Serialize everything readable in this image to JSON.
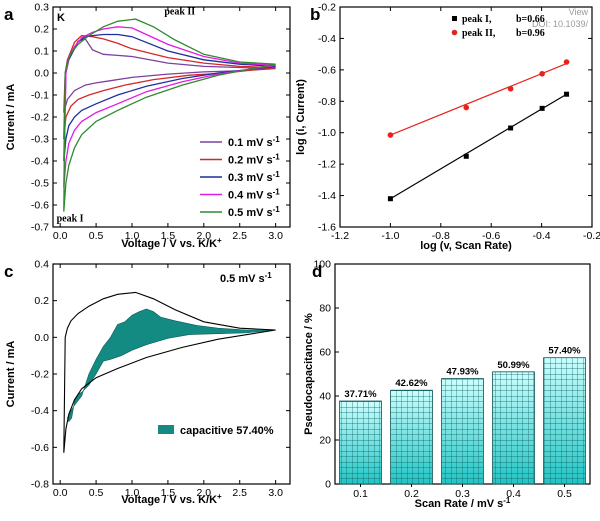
{
  "chart_data": [
    {
      "id": "a",
      "panel_label": "a",
      "type": "line",
      "title": "",
      "corner_text": "K",
      "xlabel": "Voltage / V vs. K/K",
      "xlabel_sup": "+",
      "ylabel": "Current / mA",
      "xlim": [
        -0.1,
        3.2
      ],
      "ylim": [
        -0.7,
        0.3
      ],
      "xticks": [
        0.0,
        0.5,
        1.0,
        1.5,
        2.0,
        2.5,
        3.0
      ],
      "xtick_labels": [
        "0.0",
        "0.5",
        "1.0",
        "1.5",
        "2.0",
        "2.5",
        "3.0"
      ],
      "yticks": [
        -0.7,
        -0.6,
        -0.5,
        -0.4,
        -0.3,
        -0.2,
        -0.1,
        0.0,
        0.1,
        0.2,
        0.3
      ],
      "ytick_labels": [
        "-0.7",
        "-0.6",
        "-0.5",
        "-0.4",
        "-0.3",
        "-0.2",
        "-0.1",
        "0.0",
        "0.1",
        "0.2",
        "0.3"
      ],
      "annotations": [
        {
          "text": "peak II",
          "x": 1.45,
          "y": 0.265
        },
        {
          "text": "peak I",
          "x": -0.05,
          "y": -0.675
        }
      ],
      "legend_position": "bottom-right",
      "series": [
        {
          "name": "0.1 mV s",
          "name_sup": "-1",
          "color": "#7f3f9f",
          "x": [
            0.05,
            0.1,
            0.2,
            0.35,
            0.5,
            0.7,
            1.0,
            1.5,
            2.0,
            2.5,
            3.0,
            2.5,
            2.0,
            1.5,
            1.0,
            0.8,
            0.6,
            0.45,
            0.35,
            0.25,
            0.2,
            0.15,
            0.1,
            0.07,
            0.05
          ],
          "y": [
            -0.18,
            -0.12,
            -0.08,
            -0.055,
            -0.045,
            -0.035,
            -0.02,
            -0.005,
            0.005,
            0.01,
            0.02,
            0.025,
            0.03,
            0.045,
            0.075,
            0.08,
            0.085,
            0.105,
            0.155,
            0.145,
            0.11,
            0.08,
            0.05,
            0.0,
            -0.18
          ]
        },
        {
          "name": "0.2 mV s",
          "name_sup": "-1",
          "color": "#d62728",
          "x": [
            0.05,
            0.08,
            0.15,
            0.25,
            0.4,
            0.6,
            0.9,
            1.3,
            1.8,
            2.3,
            3.0,
            2.5,
            2.0,
            1.5,
            1.0,
            0.8,
            0.6,
            0.45,
            0.3,
            0.2,
            0.15,
            0.1,
            0.07,
            0.05
          ],
          "y": [
            -0.3,
            -0.2,
            -0.15,
            -0.12,
            -0.1,
            -0.08,
            -0.055,
            -0.03,
            -0.01,
            0.0,
            0.025,
            0.03,
            0.045,
            0.07,
            0.11,
            0.135,
            0.155,
            0.165,
            0.17,
            0.14,
            0.1,
            0.06,
            0.0,
            -0.3
          ]
        },
        {
          "name": "0.3 mV s",
          "name_sup": "-1",
          "color": "#1f2fa0",
          "x": [
            0.05,
            0.08,
            0.12,
            0.2,
            0.3,
            0.5,
            0.8,
            1.2,
            1.7,
            2.2,
            3.0,
            2.5,
            2.0,
            1.5,
            1.0,
            0.8,
            0.6,
            0.45,
            0.35,
            0.25,
            0.18,
            0.12,
            0.08,
            0.05
          ],
          "y": [
            -0.4,
            -0.3,
            -0.24,
            -0.2,
            -0.17,
            -0.14,
            -0.1,
            -0.06,
            -0.025,
            0.0,
            0.03,
            0.04,
            0.06,
            0.1,
            0.165,
            0.175,
            0.175,
            0.17,
            0.165,
            0.14,
            0.1,
            0.06,
            0.0,
            -0.4
          ]
        },
        {
          "name": "0.4 mV s",
          "name_sup": "-1",
          "color": "#e21be2",
          "x": [
            0.05,
            0.08,
            0.12,
            0.2,
            0.3,
            0.5,
            0.8,
            1.2,
            1.7,
            2.2,
            3.0,
            2.5,
            2.0,
            1.5,
            1.2,
            1.0,
            0.8,
            0.6,
            0.45,
            0.3,
            0.2,
            0.12,
            0.08,
            0.05
          ],
          "y": [
            -0.52,
            -0.4,
            -0.32,
            -0.26,
            -0.22,
            -0.18,
            -0.14,
            -0.085,
            -0.04,
            -0.005,
            0.035,
            0.045,
            0.075,
            0.13,
            0.175,
            0.205,
            0.21,
            0.2,
            0.185,
            0.16,
            0.12,
            0.07,
            0.0,
            -0.52
          ]
        },
        {
          "name": "0.5 mV s",
          "name_sup": "-1",
          "color": "#2e8b2e",
          "x": [
            0.05,
            0.08,
            0.12,
            0.2,
            0.3,
            0.5,
            0.8,
            1.2,
            1.7,
            2.2,
            3.0,
            2.5,
            2.0,
            1.6,
            1.3,
            1.05,
            0.8,
            0.6,
            0.4,
            0.25,
            0.15,
            0.1,
            0.07,
            0.05
          ],
          "y": [
            -0.63,
            -0.5,
            -0.42,
            -0.34,
            -0.28,
            -0.22,
            -0.17,
            -0.11,
            -0.055,
            -0.01,
            0.04,
            0.05,
            0.085,
            0.15,
            0.21,
            0.245,
            0.235,
            0.21,
            0.17,
            0.13,
            0.09,
            0.05,
            0.0,
            -0.63
          ]
        }
      ]
    },
    {
      "id": "b",
      "panel_label": "b",
      "type": "scatter",
      "title": "",
      "xlabel": "log (v, Scan Rate)",
      "ylabel": "log (i, Current)",
      "xlim": [
        -1.2,
        -0.2
      ],
      "ylim": [
        -1.6,
        -0.2
      ],
      "xticks": [
        -1.2,
        -1.0,
        -0.8,
        -0.6,
        -0.4,
        -0.2
      ],
      "xtick_labels": [
        "-1.2",
        "-1.0",
        "-0.8",
        "-0.6",
        "-0.4",
        "-0.2"
      ],
      "yticks": [
        -1.6,
        -1.4,
        -1.2,
        -1.0,
        -0.8,
        -0.6,
        -0.4,
        -0.2
      ],
      "ytick_labels": [
        "-1.6",
        "-1.4",
        "-1.2",
        "-1.0",
        "-0.8",
        "-0.6",
        "-0.4",
        "-0.2"
      ],
      "legend_position": "top-right",
      "faint_text": [
        "DOI: 10.1039/",
        "View"
      ],
      "series": [
        {
          "name": "peak I,",
          "slope_label": "b=0.66",
          "color": "#000000",
          "marker": "square",
          "x": [
            -1.0,
            -0.699,
            -0.523,
            -0.398,
            -0.301
          ],
          "y": [
            -1.42,
            -1.15,
            -0.97,
            -0.845,
            -0.755
          ],
          "fit": [
            [
              -1.0,
              -1.42
            ],
            [
              -0.301,
              -0.755
            ]
          ]
        },
        {
          "name": "peak II,",
          "slope_label": "b=0.96",
          "color": "#e8221a",
          "marker": "circle",
          "x": [
            -1.0,
            -0.699,
            -0.523,
            -0.398,
            -0.301
          ],
          "y": [
            -1.015,
            -0.84,
            -0.72,
            -0.625,
            -0.55
          ],
          "fit": [
            [
              -1.0,
              -1.015
            ],
            [
              -0.301,
              -0.56
            ]
          ]
        }
      ]
    },
    {
      "id": "c",
      "panel_label": "c",
      "type": "area",
      "title": "",
      "corner_text": "0.5 mV s",
      "corner_text_sup": "-1",
      "xlabel": "Voltage / V vs. K/K",
      "xlabel_sup": "+",
      "ylabel": "Current / mA",
      "xlim": [
        -0.1,
        3.2
      ],
      "ylim": [
        -0.8,
        0.4
      ],
      "xticks": [
        0.0,
        0.5,
        1.0,
        1.5,
        2.0,
        2.5,
        3.0
      ],
      "xtick_labels": [
        "0.0",
        "0.5",
        "1.0",
        "1.5",
        "2.0",
        "2.5",
        "3.0"
      ],
      "yticks": [
        -0.8,
        -0.6,
        -0.4,
        -0.2,
        0.0,
        0.2,
        0.4
      ],
      "ytick_labels": [
        "-0.8",
        "-0.6",
        "-0.4",
        "-0.2",
        "0.0",
        "0.2",
        "0.4"
      ],
      "legend_position": "bottom-right",
      "legend_label": "capacitive 57.40%",
      "fill_color": "#138a82",
      "total_curve": {
        "x": [
          0.05,
          0.08,
          0.12,
          0.2,
          0.3,
          0.5,
          0.8,
          1.2,
          1.7,
          2.2,
          3.0,
          2.5,
          2.0,
          1.6,
          1.3,
          1.05,
          0.8,
          0.6,
          0.4,
          0.25,
          0.15,
          0.1,
          0.07,
          0.05
        ],
        "y": [
          -0.63,
          -0.5,
          -0.42,
          -0.34,
          -0.28,
          -0.22,
          -0.17,
          -0.11,
          -0.055,
          -0.01,
          0.04,
          0.05,
          0.085,
          0.15,
          0.21,
          0.245,
          0.235,
          0.21,
          0.17,
          0.13,
          0.09,
          0.05,
          0.0,
          -0.63
        ]
      },
      "capacitive_region": {
        "x": [
          0.1,
          0.12,
          0.16,
          0.2,
          0.25,
          0.3,
          0.4,
          0.5,
          0.6,
          0.7,
          0.85,
          1.0,
          1.2,
          1.5,
          1.8,
          2.2,
          2.6,
          3.0,
          2.6,
          2.2,
          1.9,
          1.6,
          1.4,
          1.3,
          1.2,
          1.1,
          1.0,
          0.9,
          0.8,
          0.7,
          0.6,
          0.5,
          0.4,
          0.3,
          0.2,
          0.15,
          0.1
        ],
        "y": [
          -0.44,
          -0.46,
          -0.44,
          -0.35,
          -0.31,
          -0.3,
          -0.26,
          -0.2,
          -0.13,
          -0.12,
          -0.1,
          -0.07,
          -0.04,
          -0.005,
          0.015,
          0.02,
          0.025,
          0.04,
          0.04,
          0.05,
          0.065,
          0.09,
          0.11,
          0.14,
          0.155,
          0.14,
          0.12,
          0.085,
          0.07,
          0.0,
          -0.05,
          -0.12,
          -0.2,
          -0.32,
          -0.37,
          -0.4,
          -0.44
        ]
      }
    },
    {
      "id": "d",
      "panel_label": "d",
      "type": "bar",
      "title": "",
      "xlabel": "Scan Rate / mV s",
      "xlabel_sup": "-1",
      "ylabel": "Pseudocapacitance / %",
      "categories": [
        "0.1",
        "0.2",
        "0.3",
        "0.4",
        "0.5"
      ],
      "values": [
        37.71,
        42.62,
        47.93,
        50.99,
        57.4
      ],
      "value_labels": [
        "37.71%",
        "42.62%",
        "47.93%",
        "50.99%",
        "57.40%"
      ],
      "ylim": [
        0,
        100
      ],
      "yticks": [
        0,
        20,
        40,
        60,
        80,
        100
      ],
      "ytick_labels": [
        "0",
        "20",
        "40",
        "60",
        "80",
        "100"
      ],
      "bar_color_top": "#ccffff",
      "bar_color_bottom": "#22c4c4",
      "grid_pattern": "crosshatch"
    }
  ]
}
